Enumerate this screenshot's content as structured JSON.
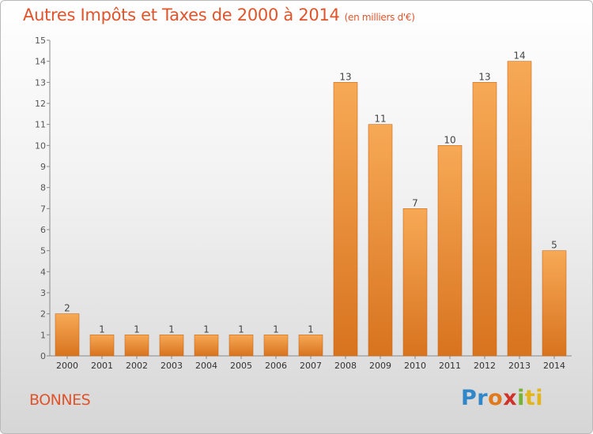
{
  "header": {
    "title": "Autres Impôts et Taxes de 2000 à 2014",
    "subtitle": "(en milliers d'€)"
  },
  "footer": {
    "place": "BONNES",
    "logo_letters": [
      "P",
      "r",
      "o",
      "x",
      "i",
      "ti"
    ]
  },
  "colors": {
    "bar_top": "#f7a955",
    "bar_bottom": "#d8731f",
    "title": "#e0542b"
  },
  "chart_data": {
    "type": "bar",
    "title": "Autres Impôts et Taxes de 2000 à 2014",
    "subtitle": "(en milliers d'€)",
    "categories": [
      "2000",
      "2001",
      "2002",
      "2003",
      "2004",
      "2005",
      "2006",
      "2007",
      "2008",
      "2009",
      "2010",
      "2011",
      "2012",
      "2013",
      "2014"
    ],
    "values": [
      2,
      1,
      1,
      1,
      1,
      1,
      1,
      1,
      13,
      11,
      7,
      10,
      13,
      14,
      5
    ],
    "ylim": [
      0,
      15
    ],
    "yticks": [
      0,
      1,
      2,
      3,
      4,
      5,
      6,
      7,
      8,
      9,
      10,
      11,
      12,
      13,
      14,
      15
    ],
    "grid": false,
    "xlabel": "",
    "ylabel": ""
  }
}
